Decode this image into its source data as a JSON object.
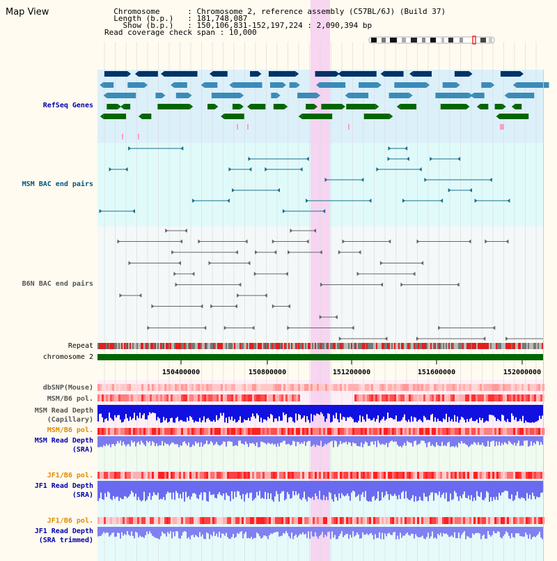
{
  "title": "Map View",
  "info": [
    {
      "key": "  Chromosome      ",
      "value": "Chromosome 2, reference assembly (C57BL/6J) (Build 37)"
    },
    {
      "key": "  Length (b.p.)   ",
      "value": "181,748,087"
    },
    {
      "key": "    Show (b.p.)   ",
      "value": "150,106,831-152,197,224 : 2,090,394 bp"
    },
    {
      "key": "Read coverage check span ",
      "value": "10,000"
    }
  ],
  "tracks": {
    "refseq": "RefSeq Genes",
    "msm_bac": "MSM BAC end pairs",
    "b6n_bac": "B6N BAC end pairs",
    "repeat": "Repeat",
    "chromosome": "chromosome 2",
    "dbsnp": "dbSNP(Mouse)",
    "msm_b6_pol": "MSM/B6 pol.",
    "msm_read_depth_cap_1": "MSM Read Depth",
    "msm_read_depth_cap_2": "(Capillary)",
    "msm_b6_pol_2": "MSM/B6 pol.",
    "msm_read_depth_sra_1": "MSM Read Depth",
    "msm_read_depth_sra_2": "(SRA)",
    "jf1_b6_pol": "JF1/B6 pol.",
    "jf1_read_depth_sra_1": "JF1 Read Depth",
    "jf1_read_depth_sra_2": "(SRA)",
    "jf1_b6_pol_2": "JF1/B6 pol.",
    "jf1_read_depth_trim_1": "JF1 Read Depth",
    "jf1_read_depth_trim_2": "(SRA trimmed)"
  },
  "axis_ticks": [
    "150400000",
    "150800000",
    "151200000",
    "151600000",
    "152000000"
  ],
  "colors": {
    "refseq_bg": "#dcf0fa",
    "msm_bg": "#e0fafa",
    "b6n_bg": "#f4f8f8",
    "highlight": "#f7d0f0",
    "refseq_dark": "#003366",
    "refseq_mid": "#3a8bb8",
    "refseq_green": "#006600",
    "msm_line": "#1a6e8a",
    "b6n_line": "#666666",
    "chromosome": "#006600",
    "label_blue": "#0000aa",
    "label_orange": "#e08a00",
    "label_teal": "#00557f"
  }
}
